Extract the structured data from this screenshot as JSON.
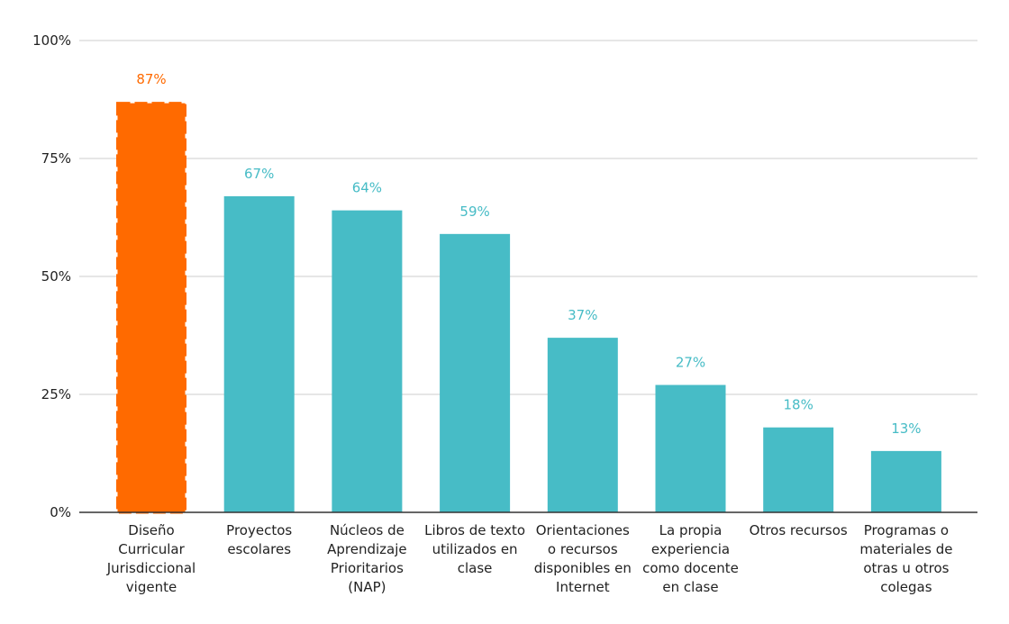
{
  "chart_data": {
    "type": "bar",
    "categories": [
      "Diseño Curricular Jurisdiccional vigente",
      "Proyectos escolares",
      "Núcleos de Aprendizaje Prioritarios (NAP)",
      "Libros de texto utilizados en clase",
      "Orientaciones o recursos disponibles en Internet",
      "La propia experiencia como docente en clase",
      "Otros recursos",
      "Programas o materiales de otras u otros colegas"
    ],
    "category_lines": [
      [
        "Diseño",
        "Curricular",
        "Jurisdiccional",
        "vigente"
      ],
      [
        "Proyectos",
        "escolares"
      ],
      [
        "Núcleos de",
        "Aprendizaje",
        "Prioritarios",
        "(NAP)"
      ],
      [
        "Libros de texto",
        "utilizados en",
        "clase"
      ],
      [
        "Orientaciones",
        "o recursos",
        "disponibles en",
        "Internet"
      ],
      [
        "La propia",
        "experiencia",
        "como docente",
        "en clase"
      ],
      [
        "Otros recursos"
      ],
      [
        "Programas o",
        "materiales de",
        "otras u otros",
        "colegas"
      ]
    ],
    "values": [
      87,
      67,
      64,
      59,
      37,
      27,
      18,
      13
    ],
    "value_labels": [
      "87%",
      "67%",
      "64%",
      "59%",
      "37%",
      "27%",
      "18%",
      "13%"
    ],
    "y_ticks": [
      0,
      25,
      50,
      75,
      100
    ],
    "y_tick_labels": [
      "0%",
      "25%",
      "50%",
      "75%",
      "100%"
    ],
    "ylim": [
      0,
      100
    ],
    "grid": true,
    "highlight_index": 0,
    "colors": {
      "bar": "#47bcc6",
      "highlight": "#ff6a00",
      "grid": "#cccccc",
      "axis": "#333333",
      "text": "#222222"
    }
  }
}
